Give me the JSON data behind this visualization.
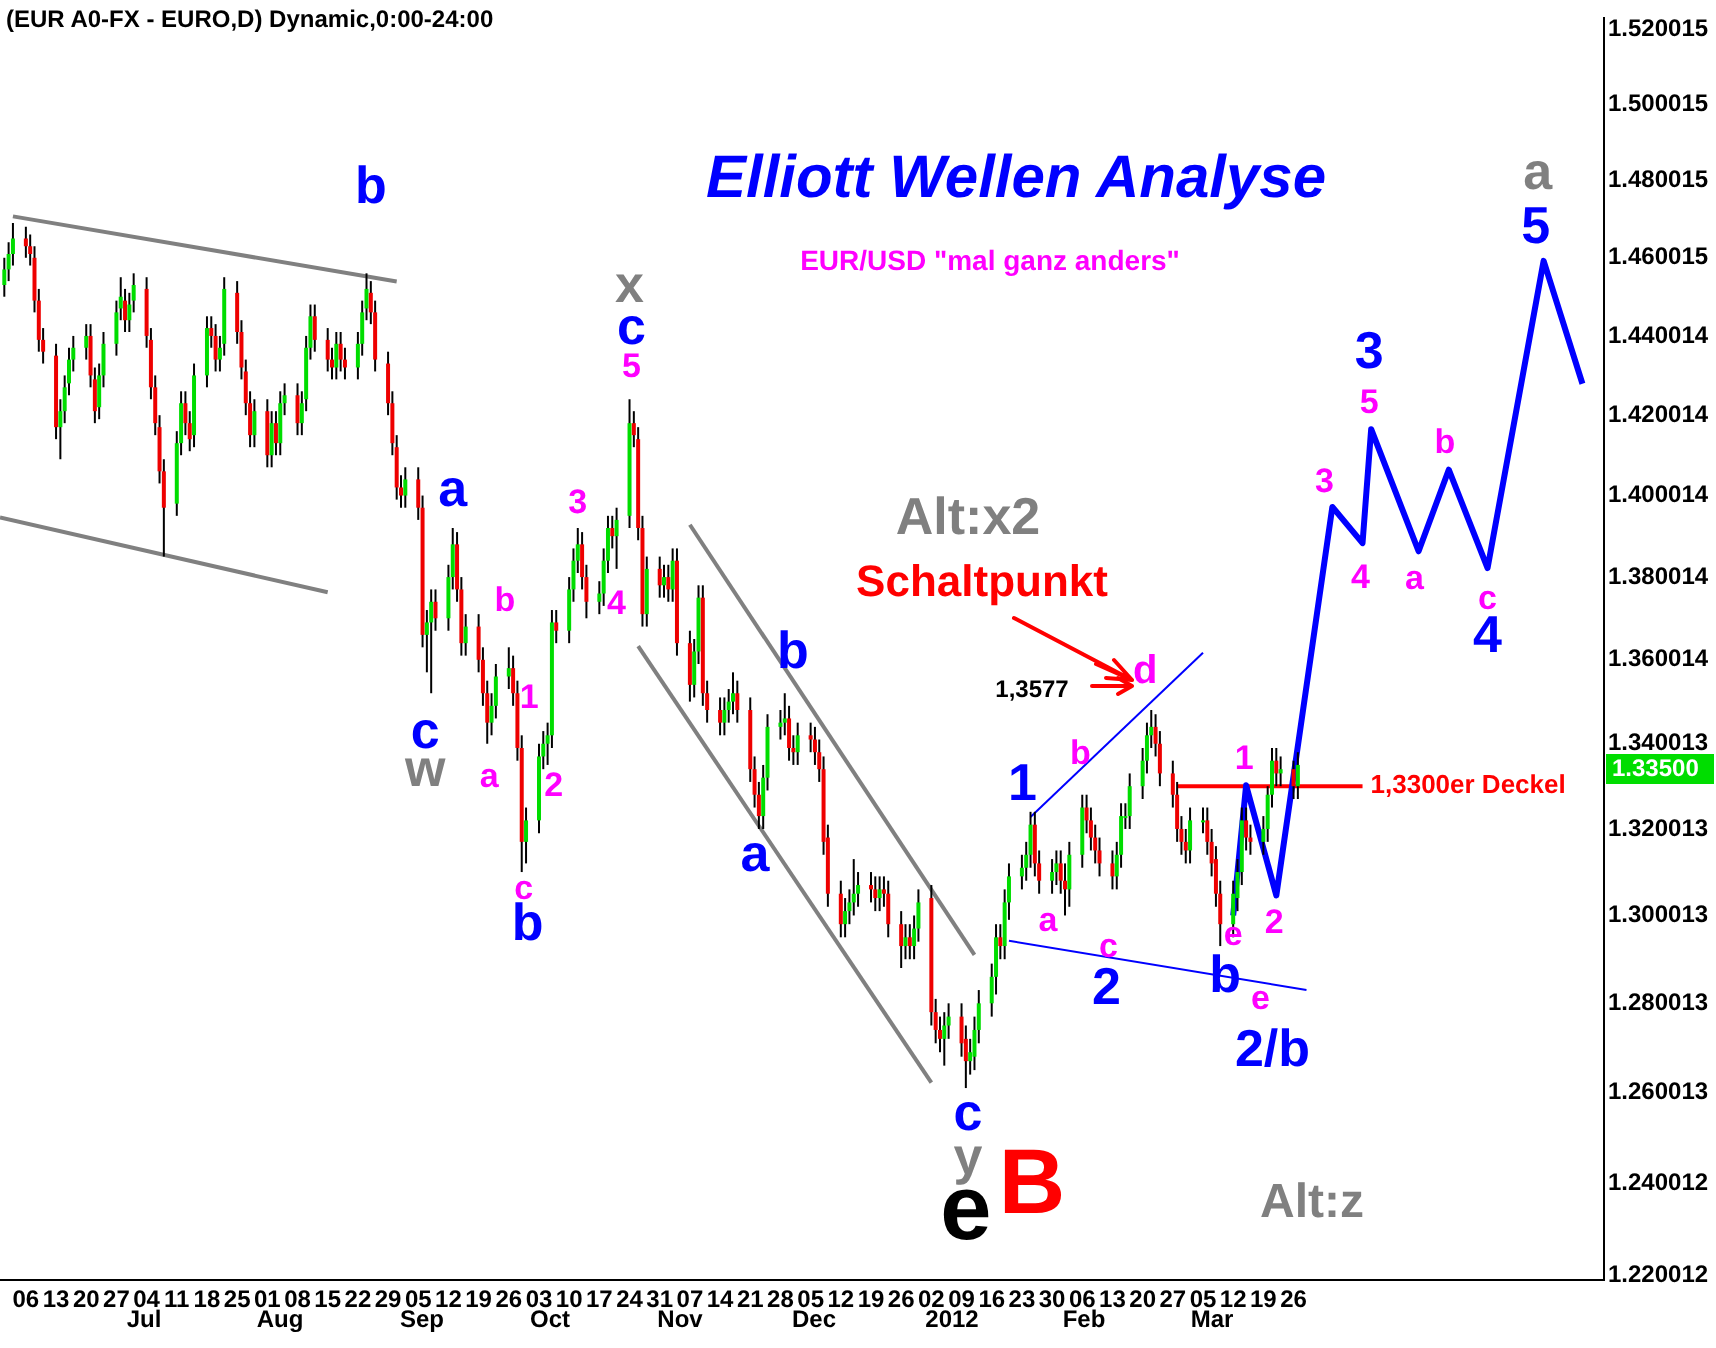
{
  "chart_data": {
    "type": "candlestick",
    "title": "Elliott Wellen Analyse",
    "subtitle": "EUR/USD \"mal ganz anders\"",
    "x": [
      "2011-06-01",
      "2011-06-02",
      "2011-06-03",
      "2011-06-06",
      "2011-06-07",
      "2011-06-08",
      "2011-06-09",
      "2011-06-10",
      "2011-06-13",
      "2011-06-14",
      "2011-06-15",
      "2011-06-16",
      "2011-06-17",
      "2011-06-20",
      "2011-06-21",
      "2011-06-22",
      "2011-06-23",
      "2011-06-24",
      "2011-06-27",
      "2011-06-28",
      "2011-06-29",
      "2011-06-30",
      "2011-07-01",
      "2011-07-04",
      "2011-07-05",
      "2011-07-06",
      "2011-07-07",
      "2011-07-08",
      "2011-07-11",
      "2011-07-12",
      "2011-07-13",
      "2011-07-14",
      "2011-07-15",
      "2011-07-18",
      "2011-07-19",
      "2011-07-20",
      "2011-07-21",
      "2011-07-22",
      "2011-07-25",
      "2011-07-26",
      "2011-07-27",
      "2011-07-28",
      "2011-07-29",
      "2011-08-01",
      "2011-08-02",
      "2011-08-03",
      "2011-08-04",
      "2011-08-05",
      "2011-08-08",
      "2011-08-09",
      "2011-08-10",
      "2011-08-11",
      "2011-08-12",
      "2011-08-15",
      "2011-08-16",
      "2011-08-17",
      "2011-08-18",
      "2011-08-19",
      "2011-08-22",
      "2011-08-23",
      "2011-08-24",
      "2011-08-25",
      "2011-08-26",
      "2011-08-29",
      "2011-08-30",
      "2011-08-31",
      "2011-09-01",
      "2011-09-02",
      "2011-09-05",
      "2011-09-06",
      "2011-09-07",
      "2011-09-08",
      "2011-09-09",
      "2011-09-12",
      "2011-09-13",
      "2011-09-14",
      "2011-09-15",
      "2011-09-16",
      "2011-09-19",
      "2011-09-20",
      "2011-09-21",
      "2011-09-22",
      "2011-09-23",
      "2011-09-26",
      "2011-09-27",
      "2011-09-28",
      "2011-09-29",
      "2011-09-30",
      "2011-10-03",
      "2011-10-04",
      "2011-10-05",
      "2011-10-06",
      "2011-10-07",
      "2011-10-10",
      "2011-10-11",
      "2011-10-12",
      "2011-10-13",
      "2011-10-14",
      "2011-10-17",
      "2011-10-18",
      "2011-10-19",
      "2011-10-20",
      "2011-10-21",
      "2011-10-24",
      "2011-10-25",
      "2011-10-26",
      "2011-10-27",
      "2011-10-28",
      "2011-10-31",
      "2011-11-01",
      "2011-11-02",
      "2011-11-03",
      "2011-11-04",
      "2011-11-07",
      "2011-11-08",
      "2011-11-09",
      "2011-11-10",
      "2011-11-11",
      "2011-11-14",
      "2011-11-15",
      "2011-11-16",
      "2011-11-17",
      "2011-11-18",
      "2011-11-21",
      "2011-11-22",
      "2011-11-23",
      "2011-11-24",
      "2011-11-25",
      "2011-11-28",
      "2011-11-29",
      "2011-11-30",
      "2011-12-01",
      "2011-12-02",
      "2011-12-05",
      "2011-12-06",
      "2011-12-07",
      "2011-12-08",
      "2011-12-09",
      "2011-12-12",
      "2011-12-13",
      "2011-12-14",
      "2011-12-15",
      "2011-12-16",
      "2011-12-19",
      "2011-12-20",
      "2011-12-21",
      "2011-12-22",
      "2011-12-23",
      "2011-12-26",
      "2011-12-27",
      "2011-12-28",
      "2011-12-29",
      "2011-12-30",
      "2012-01-02",
      "2012-01-03",
      "2012-01-04",
      "2012-01-05",
      "2012-01-06",
      "2012-01-09",
      "2012-01-10",
      "2012-01-11",
      "2012-01-12",
      "2012-01-13",
      "2012-01-16",
      "2012-01-17",
      "2012-01-18",
      "2012-01-19",
      "2012-01-20",
      "2012-01-23",
      "2012-01-24",
      "2012-01-25",
      "2012-01-26",
      "2012-01-27",
      "2012-01-30",
      "2012-01-31",
      "2012-02-01",
      "2012-02-02",
      "2012-02-03",
      "2012-02-06",
      "2012-02-07",
      "2012-02-08",
      "2012-02-09",
      "2012-02-10",
      "2012-02-13",
      "2012-02-14",
      "2012-02-15",
      "2012-02-16",
      "2012-02-17",
      "2012-02-20",
      "2012-02-21",
      "2012-02-22",
      "2012-02-23",
      "2012-02-24",
      "2012-02-27",
      "2012-02-28",
      "2012-02-29",
      "2012-03-01",
      "2012-03-02",
      "2012-03-05",
      "2012-03-06",
      "2012-03-07",
      "2012-03-08",
      "2012-03-09",
      "2012-03-12",
      "2012-03-13",
      "2012-03-14",
      "2012-03-15",
      "2012-03-16",
      "2012-03-19",
      "2012-03-20",
      "2012-03-21",
      "2012-03-22",
      "2012-03-23",
      "2012-03-26",
      "2012-03-27"
    ],
    "ohlc": [
      [
        1.453,
        1.46,
        1.45,
        1.457
      ],
      [
        1.457,
        1.464,
        1.454,
        1.461
      ],
      [
        1.461,
        1.469,
        1.458,
        1.465
      ],
      [
        1.465,
        1.468,
        1.46,
        1.463
      ],
      [
        1.463,
        1.466,
        1.458,
        1.461
      ],
      [
        1.46,
        1.463,
        1.446,
        1.449
      ],
      [
        1.449,
        1.452,
        1.436,
        1.439
      ],
      [
        1.439,
        1.442,
        1.433,
        1.436
      ],
      [
        1.435,
        1.438,
        1.414,
        1.417
      ],
      [
        1.417,
        1.424,
        1.409,
        1.421
      ],
      [
        1.421,
        1.43,
        1.418,
        1.427
      ],
      [
        1.428,
        1.437,
        1.425,
        1.434
      ],
      [
        1.434,
        1.44,
        1.431,
        1.437
      ],
      [
        1.437,
        1.443,
        1.434,
        1.44
      ],
      [
        1.44,
        1.443,
        1.427,
        1.43
      ],
      [
        1.429,
        1.432,
        1.418,
        1.421
      ],
      [
        1.422,
        1.433,
        1.419,
        1.43
      ],
      [
        1.43,
        1.441,
        1.427,
        1.438
      ],
      [
        1.438,
        1.449,
        1.435,
        1.446
      ],
      [
        1.447,
        1.455,
        1.444,
        1.45
      ],
      [
        1.449,
        1.452,
        1.441,
        1.444
      ],
      [
        1.444,
        1.451,
        1.441,
        1.448
      ],
      [
        1.449,
        1.456,
        1.446,
        1.453
      ],
      [
        1.452,
        1.455,
        1.437,
        1.44
      ],
      [
        1.439,
        1.442,
        1.424,
        1.427
      ],
      [
        1.427,
        1.43,
        1.415,
        1.418
      ],
      [
        1.417,
        1.42,
        1.403,
        1.406
      ],
      [
        1.406,
        1.409,
        1.385,
        1.397
      ],
      [
        1.398,
        1.416,
        1.395,
        1.413
      ],
      [
        1.413,
        1.426,
        1.41,
        1.423
      ],
      [
        1.423,
        1.426,
        1.415,
        1.418
      ],
      [
        1.418,
        1.421,
        1.411,
        1.414
      ],
      [
        1.415,
        1.433,
        1.412,
        1.43
      ],
      [
        1.43,
        1.445,
        1.427,
        1.442
      ],
      [
        1.442,
        1.445,
        1.437,
        1.44
      ],
      [
        1.44,
        1.443,
        1.431,
        1.434
      ],
      [
        1.434,
        1.44,
        1.431,
        1.437
      ],
      [
        1.438,
        1.455,
        1.435,
        1.452
      ],
      [
        1.451,
        1.454,
        1.438,
        1.441
      ],
      [
        1.441,
        1.444,
        1.429,
        1.432
      ],
      [
        1.431,
        1.434,
        1.42,
        1.423
      ],
      [
        1.423,
        1.426,
        1.412,
        1.415
      ],
      [
        1.415,
        1.424,
        1.412,
        1.421
      ],
      [
        1.421,
        1.424,
        1.407,
        1.41
      ],
      [
        1.41,
        1.421,
        1.407,
        1.418
      ],
      [
        1.418,
        1.421,
        1.41,
        1.413
      ],
      [
        1.413,
        1.426,
        1.41,
        1.423
      ],
      [
        1.423,
        1.428,
        1.42,
        1.425
      ],
      [
        1.425,
        1.428,
        1.415,
        1.418
      ],
      [
        1.418,
        1.426,
        1.415,
        1.423
      ],
      [
        1.424,
        1.44,
        1.421,
        1.437
      ],
      [
        1.437,
        1.448,
        1.434,
        1.445
      ],
      [
        1.445,
        1.448,
        1.436,
        1.439
      ],
      [
        1.439,
        1.442,
        1.431,
        1.434
      ],
      [
        1.434,
        1.437,
        1.429,
        1.432
      ],
      [
        1.432,
        1.441,
        1.429,
        1.438
      ],
      [
        1.438,
        1.441,
        1.431,
        1.434
      ],
      [
        1.434,
        1.437,
        1.429,
        1.432
      ],
      [
        1.432,
        1.441,
        1.429,
        1.438
      ],
      [
        1.438,
        1.449,
        1.435,
        1.446
      ],
      [
        1.447,
        1.456,
        1.444,
        1.452
      ],
      [
        1.451,
        1.454,
        1.443,
        1.446
      ],
      [
        1.446,
        1.449,
        1.431,
        1.434
      ],
      [
        1.433,
        1.436,
        1.42,
        1.423
      ],
      [
        1.423,
        1.426,
        1.41,
        1.413
      ],
      [
        1.412,
        1.415,
        1.399,
        1.402
      ],
      [
        1.402,
        1.405,
        1.397,
        1.4
      ],
      [
        1.4,
        1.407,
        1.397,
        1.404
      ],
      [
        1.404,
        1.407,
        1.394,
        1.397
      ],
      [
        1.397,
        1.4,
        1.363,
        1.366
      ],
      [
        1.366,
        1.372,
        1.357,
        1.369
      ],
      [
        1.369,
        1.377,
        1.352,
        1.374
      ],
      [
        1.374,
        1.377,
        1.367,
        1.37
      ],
      [
        1.37,
        1.383,
        1.367,
        1.38
      ],
      [
        1.38,
        1.392,
        1.377,
        1.388
      ],
      [
        1.388,
        1.391,
        1.374,
        1.377
      ],
      [
        1.377,
        1.38,
        1.361,
        1.364
      ],
      [
        1.364,
        1.371,
        1.361,
        1.368
      ],
      [
        1.368,
        1.371,
        1.357,
        1.36
      ],
      [
        1.36,
        1.363,
        1.349,
        1.352
      ],
      [
        1.352,
        1.355,
        1.34,
        1.345
      ],
      [
        1.345,
        1.352,
        1.342,
        1.349
      ],
      [
        1.349,
        1.359,
        1.346,
        1.356
      ],
      [
        1.356,
        1.363,
        1.353,
        1.358
      ],
      [
        1.358,
        1.361,
        1.349,
        1.352
      ],
      [
        1.352,
        1.355,
        1.336,
        1.339
      ],
      [
        1.339,
        1.342,
        1.31,
        1.317
      ],
      [
        1.317,
        1.325,
        1.312,
        1.322
      ],
      [
        1.322,
        1.34,
        1.319,
        1.337
      ],
      [
        1.337,
        1.343,
        1.334,
        1.34
      ],
      [
        1.34,
        1.345,
        1.335,
        1.342
      ],
      [
        1.342,
        1.372,
        1.339,
        1.369
      ],
      [
        1.369,
        1.372,
        1.364,
        1.367
      ],
      [
        1.367,
        1.38,
        1.364,
        1.377
      ],
      [
        1.377,
        1.387,
        1.374,
        1.384
      ],
      [
        1.384,
        1.392,
        1.381,
        1.388
      ],
      [
        1.388,
        1.391,
        1.377,
        1.38
      ],
      [
        1.38,
        1.383,
        1.37,
        1.374
      ],
      [
        1.374,
        1.379,
        1.371,
        1.376
      ],
      [
        1.376,
        1.387,
        1.373,
        1.384
      ],
      [
        1.384,
        1.395,
        1.381,
        1.392
      ],
      [
        1.392,
        1.395,
        1.387,
        1.39
      ],
      [
        1.39,
        1.397,
        1.382,
        1.394
      ],
      [
        1.395,
        1.424,
        1.392,
        1.418
      ],
      [
        1.418,
        1.421,
        1.412,
        1.415
      ],
      [
        1.414,
        1.417,
        1.389,
        1.392
      ],
      [
        1.392,
        1.395,
        1.368,
        1.371
      ],
      [
        1.371,
        1.385,
        1.368,
        1.382
      ],
      [
        1.382,
        1.385,
        1.375,
        1.378
      ],
      [
        1.378,
        1.383,
        1.375,
        1.38
      ],
      [
        1.38,
        1.383,
        1.374,
        1.377
      ],
      [
        1.377,
        1.387,
        1.374,
        1.384
      ],
      [
        1.384,
        1.387,
        1.361,
        1.364
      ],
      [
        1.364,
        1.367,
        1.35,
        1.354
      ],
      [
        1.354,
        1.365,
        1.351,
        1.362
      ],
      [
        1.362,
        1.378,
        1.359,
        1.375
      ],
      [
        1.375,
        1.378,
        1.349,
        1.352
      ],
      [
        1.352,
        1.355,
        1.345,
        1.348
      ],
      [
        1.348,
        1.351,
        1.342,
        1.345
      ],
      [
        1.345,
        1.351,
        1.342,
        1.348
      ],
      [
        1.348,
        1.353,
        1.345,
        1.35
      ],
      [
        1.35,
        1.357,
        1.347,
        1.352
      ],
      [
        1.352,
        1.355,
        1.345,
        1.348
      ],
      [
        1.348,
        1.351,
        1.331,
        1.334
      ],
      [
        1.334,
        1.337,
        1.325,
        1.328
      ],
      [
        1.328,
        1.331,
        1.32,
        1.323
      ],
      [
        1.323,
        1.335,
        1.32,
        1.332
      ],
      [
        1.332,
        1.347,
        1.329,
        1.344
      ],
      [
        1.344,
        1.348,
        1.341,
        1.345
      ],
      [
        1.345,
        1.352,
        1.342,
        1.346
      ],
      [
        1.346,
        1.349,
        1.336,
        1.339
      ],
      [
        1.339,
        1.342,
        1.335,
        1.338
      ],
      [
        1.338,
        1.345,
        1.335,
        1.342
      ],
      [
        1.342,
        1.345,
        1.338,
        1.341
      ],
      [
        1.341,
        1.344,
        1.335,
        1.338
      ],
      [
        1.338,
        1.341,
        1.331,
        1.334
      ],
      [
        1.334,
        1.337,
        1.314,
        1.317
      ],
      [
        1.318,
        1.321,
        1.302,
        1.305
      ],
      [
        1.305,
        1.308,
        1.295,
        1.298
      ],
      [
        1.298,
        1.304,
        1.295,
        1.301
      ],
      [
        1.301,
        1.306,
        1.298,
        1.303
      ],
      [
        1.303,
        1.313,
        1.3,
        1.305
      ],
      [
        1.305,
        1.31,
        1.302,
        1.307
      ],
      [
        1.307,
        1.31,
        1.303,
        1.306
      ],
      [
        1.306,
        1.309,
        1.301,
        1.304
      ],
      [
        1.304,
        1.309,
        1.301,
        1.306
      ],
      [
        1.306,
        1.309,
        1.302,
        1.305
      ],
      [
        1.305,
        1.308,
        1.295,
        1.298
      ],
      [
        1.298,
        1.301,
        1.288,
        1.293
      ],
      [
        1.293,
        1.298,
        1.29,
        1.295
      ],
      [
        1.295,
        1.298,
        1.29,
        1.293
      ],
      [
        1.293,
        1.3,
        1.29,
        1.297
      ],
      [
        1.297,
        1.306,
        1.294,
        1.303
      ],
      [
        1.304,
        1.307,
        1.275,
        1.278
      ],
      [
        1.278,
        1.281,
        1.271,
        1.274
      ],
      [
        1.274,
        1.277,
        1.269,
        1.272
      ],
      [
        1.272,
        1.278,
        1.266,
        1.275
      ],
      [
        1.275,
        1.28,
        1.272,
        1.277
      ],
      [
        1.277,
        1.28,
        1.268,
        1.271
      ],
      [
        1.272,
        1.275,
        1.261,
        1.267
      ],
      [
        1.267,
        1.272,
        1.264,
        1.269
      ],
      [
        1.268,
        1.277,
        1.265,
        1.274
      ],
      [
        1.274,
        1.283,
        1.271,
        1.28
      ],
      [
        1.28,
        1.289,
        1.277,
        1.286
      ],
      [
        1.286,
        1.298,
        1.282,
        1.295
      ],
      [
        1.295,
        1.298,
        1.29,
        1.293
      ],
      [
        1.293,
        1.306,
        1.29,
        1.303
      ],
      [
        1.303,
        1.312,
        1.299,
        1.309
      ],
      [
        1.309,
        1.314,
        1.306,
        1.311
      ],
      [
        1.311,
        1.317,
        1.308,
        1.314
      ],
      [
        1.314,
        1.324,
        1.311,
        1.321
      ],
      [
        1.321,
        1.324,
        1.309,
        1.312
      ],
      [
        1.312,
        1.315,
        1.305,
        1.308
      ],
      [
        1.308,
        1.313,
        1.305,
        1.31
      ],
      [
        1.31,
        1.315,
        1.307,
        1.312
      ],
      [
        1.312,
        1.315,
        1.305,
        1.308
      ],
      [
        1.308,
        1.312,
        1.3,
        1.306
      ],
      [
        1.306,
        1.317,
        1.302,
        1.314
      ],
      [
        1.314,
        1.328,
        1.311,
        1.325
      ],
      [
        1.325,
        1.328,
        1.319,
        1.322
      ],
      [
        1.322,
        1.325,
        1.315,
        1.318
      ],
      [
        1.318,
        1.321,
        1.312,
        1.315
      ],
      [
        1.315,
        1.318,
        1.309,
        1.312
      ],
      [
        1.312,
        1.315,
        1.306,
        1.309
      ],
      [
        1.309,
        1.317,
        1.306,
        1.314
      ],
      [
        1.314,
        1.326,
        1.311,
        1.323
      ],
      [
        1.323,
        1.326,
        1.32,
        1.323
      ],
      [
        1.323,
        1.333,
        1.32,
        1.33
      ],
      [
        1.33,
        1.339,
        1.327,
        1.336
      ],
      [
        1.336,
        1.345,
        1.333,
        1.342
      ],
      [
        1.342,
        1.348,
        1.339,
        1.344
      ],
      [
        1.344,
        1.347,
        1.337,
        1.34
      ],
      [
        1.34,
        1.343,
        1.33,
        1.333
      ],
      [
        1.333,
        1.336,
        1.325,
        1.328
      ],
      [
        1.328,
        1.331,
        1.317,
        1.32
      ],
      [
        1.32,
        1.323,
        1.314,
        1.317
      ],
      [
        1.317,
        1.32,
        1.312,
        1.315
      ],
      [
        1.315,
        1.325,
        1.312,
        1.322
      ],
      [
        1.322,
        1.325,
        1.319,
        1.322
      ],
      [
        1.322,
        1.325,
        1.314,
        1.317
      ],
      [
        1.317,
        1.32,
        1.309,
        1.312
      ],
      [
        1.313,
        1.316,
        1.302,
        1.305
      ],
      [
        1.305,
        1.308,
        1.293,
        1.298
      ],
      [
        1.298,
        1.308,
        1.295,
        1.305
      ],
      [
        1.304,
        1.313,
        1.301,
        1.31
      ],
      [
        1.31,
        1.325,
        1.307,
        1.322
      ],
      [
        1.322,
        1.325,
        1.315,
        1.318
      ],
      [
        1.318,
        1.321,
        1.314,
        1.317
      ],
      [
        1.317,
        1.323,
        1.314,
        1.32
      ],
      [
        1.32,
        1.33,
        1.317,
        1.328
      ],
      [
        1.328,
        1.339,
        1.325,
        1.336
      ],
      [
        1.336,
        1.339,
        1.33,
        1.333
      ],
      [
        1.333,
        1.337,
        1.33,
        1.334
      ],
      [
        1.334,
        1.336,
        1.327,
        1.33
      ],
      [
        1.33,
        1.338,
        1.327,
        1.335
      ]
    ],
    "colors": [
      "#00dd00",
      "#00dd00",
      "#00dd00",
      "#ee0000",
      "#ee0000",
      "#ee0000",
      "#ee0000",
      "#ee0000",
      "#ee0000",
      "#00dd00",
      "#00dd00",
      "#00dd00",
      "#00dd00",
      "#00dd00",
      "#ee0000",
      "#ee0000",
      "#00dd00",
      "#00dd00",
      "#00dd00",
      "#00dd00",
      "#ee0000",
      "#00dd00",
      "#00dd00",
      "#ee0000",
      "#ee0000",
      "#ee0000",
      "#ee0000",
      "#ee0000",
      "#00dd00",
      "#00dd00",
      "#ee0000",
      "#ee0000",
      "#00dd00",
      "#00dd00",
      "#ee0000",
      "#ee0000",
      "#00dd00",
      "#00dd00",
      "#ee0000",
      "#ee0000",
      "#ee0000",
      "#ee0000",
      "#00dd00",
      "#ee0000",
      "#00dd00",
      "#ee0000",
      "#00dd00",
      "#00dd00",
      "#ee0000",
      "#00dd00",
      "#00dd00",
      "#00dd00",
      "#ee0000",
      "#ee0000",
      "#ee0000",
      "#00dd00",
      "#ee0000",
      "#ee0000",
      "#00dd00",
      "#00dd00",
      "#00dd00",
      "#ee0000",
      "#ee0000",
      "#ee0000",
      "#ee0000",
      "#ee0000",
      "#ee0000",
      "#00dd00",
      "#ee0000",
      "#ee0000",
      "#00dd00",
      "#00dd00",
      "#ee0000",
      "#00dd00",
      "#00dd00",
      "#ee0000",
      "#ee0000",
      "#00dd00",
      "#ee0000",
      "#ee0000",
      "#ee0000",
      "#00dd00",
      "#00dd00",
      "#00dd00",
      "#ee0000",
      "#ee0000",
      "#ee0000",
      "#00dd00",
      "#00dd00",
      "#00dd00",
      "#00dd00",
      "#00dd00",
      "#ee0000",
      "#00dd00",
      "#00dd00",
      "#00dd00",
      "#ee0000",
      "#ee0000",
      "#00dd00",
      "#00dd00",
      "#00dd00",
      "#ee0000",
      "#00dd00",
      "#00dd00",
      "#ee0000",
      "#ee0000",
      "#ee0000",
      "#00dd00",
      "#ee0000",
      "#00dd00",
      "#ee0000",
      "#00dd00",
      "#ee0000",
      "#ee0000",
      "#00dd00",
      "#00dd00",
      "#ee0000",
      "#ee0000",
      "#ee0000",
      "#00dd00",
      "#00dd00",
      "#00dd00",
      "#ee0000",
      "#ee0000",
      "#ee0000",
      "#ee0000",
      "#00dd00",
      "#00dd00",
      "#00dd00",
      "#00dd00",
      "#ee0000",
      "#ee0000",
      "#00dd00",
      "#ee0000",
      "#ee0000",
      "#ee0000",
      "#ee0000",
      "#ee0000",
      "#ee0000",
      "#00dd00",
      "#00dd00",
      "#00dd00",
      "#00dd00",
      "#ee0000",
      "#ee0000",
      "#00dd00",
      "#ee0000",
      "#ee0000",
      "#ee0000",
      "#00dd00",
      "#ee0000",
      "#00dd00",
      "#00dd00",
      "#ee0000",
      "#ee0000",
      "#ee0000",
      "#00dd00",
      "#00dd00",
      "#ee0000",
      "#ee0000",
      "#00dd00",
      "#00dd00",
      "#00dd00",
      "#00dd00",
      "#00dd00",
      "#ee0000",
      "#00dd00",
      "#00dd00",
      "#00dd00",
      "#00dd00",
      "#00dd00",
      "#ee0000",
      "#ee0000",
      "#00dd00",
      "#00dd00",
      "#ee0000",
      "#ee0000",
      "#00dd00",
      "#00dd00",
      "#ee0000",
      "#ee0000",
      "#ee0000",
      "#ee0000",
      "#ee0000",
      "#00dd00",
      "#00dd00",
      "#00dd00",
      "#00dd00",
      "#00dd00",
      "#00dd00",
      "#00dd00",
      "#ee0000",
      "#ee0000",
      "#ee0000",
      "#ee0000",
      "#ee0000",
      "#ee0000",
      "#00dd00",
      "#00dd00",
      "#ee0000",
      "#ee0000",
      "#ee0000",
      "#ee0000",
      "#00dd00",
      "#00dd00",
      "#00dd00",
      "#ee0000",
      "#ee0000",
      "#00dd00",
      "#00dd00",
      "#00dd00",
      "#ee0000",
      "#00dd00",
      "#ee0000",
      "#00dd00"
    ],
    "series": [
      {
        "type": "line",
        "color": "#808080",
        "x": [
          "2011-06-03",
          "2011-08-31"
        ],
        "values": [
          1.4707,
          1.4539
        ]
      },
      {
        "type": "line",
        "color": "#808080",
        "x": [
          "2011-05-31",
          "2011-08-15"
        ],
        "values": [
          1.3946,
          1.3763
        ]
      },
      {
        "type": "line",
        "color": "#808080",
        "x": [
          "2011-11-07",
          "2012-01-12"
        ],
        "values": [
          1.3928,
          1.291
        ]
      },
      {
        "type": "line",
        "color": "#808080",
        "x": [
          "2011-10-26",
          "2012-01-02"
        ],
        "values": [
          1.3633,
          1.2622
        ]
      },
      {
        "type": "line",
        "color": "#0000ff",
        "x": [
          "2012-01-25",
          "2012-03-05"
        ],
        "values": [
          1.3228,
          1.3617
        ]
      },
      {
        "type": "line",
        "color": "#0000ff",
        "x": [
          "2012-01-20",
          "2012-03-29"
        ],
        "values": [
          1.2942,
          1.283
        ]
      },
      {
        "type": "line",
        "color": "#0000ff",
        "x": [
          "2012-03-12",
          "2012-03-15",
          "2012-03-22",
          "2012-04-04",
          "2012-04-11",
          "2012-04-13",
          "2012-04-24",
          "2012-05-01",
          "2012-05-10",
          "2012-05-23",
          "2012-06-01"
        ],
        "values": [
          1.3,
          1.3302,
          1.3046,
          1.3972,
          1.3883,
          1.4165,
          1.3863,
          1.4064,
          1.3822,
          1.4592,
          1.4279
        ]
      },
      {
        "type": "line",
        "name": "1,3300er Deckel",
        "color": "#ff0000",
        "x": [
          "2012-02-28",
          "2012-04-11"
        ],
        "values": [
          1.33,
          1.33
        ]
      }
    ],
    "xlim": [
      "2011-05-31",
      "2012-06-06"
    ],
    "xticks": [
      {
        "value": "2011-06-06",
        "label": "06"
      },
      {
        "value": "2011-06-13",
        "label": "13"
      },
      {
        "value": "2011-06-20",
        "label": "20"
      },
      {
        "value": "2011-06-27",
        "label": "27"
      },
      {
        "value": "2011-07-04",
        "label": "04"
      },
      {
        "value": "2011-07-11",
        "label": "11"
      },
      {
        "value": "2011-07-18",
        "label": "18"
      },
      {
        "value": "2011-07-25",
        "label": "25"
      },
      {
        "value": "2011-08-01",
        "label": "01"
      },
      {
        "value": "2011-08-08",
        "label": "08"
      },
      {
        "value": "2011-08-15",
        "label": "15"
      },
      {
        "value": "2011-08-22",
        "label": "22"
      },
      {
        "value": "2011-08-29",
        "label": "29"
      },
      {
        "value": "2011-09-05",
        "label": "05"
      },
      {
        "value": "2011-09-12",
        "label": "12"
      },
      {
        "value": "2011-09-19",
        "label": "19"
      },
      {
        "value": "2011-09-26",
        "label": "26"
      },
      {
        "value": "2011-10-03",
        "label": "03"
      },
      {
        "value": "2011-10-10",
        "label": "10"
      },
      {
        "value": "2011-10-17",
        "label": "17"
      },
      {
        "value": "2011-10-24",
        "label": "24"
      },
      {
        "value": "2011-10-31",
        "label": "31"
      },
      {
        "value": "2011-11-07",
        "label": "07"
      },
      {
        "value": "2011-11-14",
        "label": "14"
      },
      {
        "value": "2011-11-21",
        "label": "21"
      },
      {
        "value": "2011-11-28",
        "label": "28"
      },
      {
        "value": "2011-12-05",
        "label": "05"
      },
      {
        "value": "2011-12-12",
        "label": "12"
      },
      {
        "value": "2011-12-19",
        "label": "19"
      },
      {
        "value": "2011-12-26",
        "label": "26"
      },
      {
        "value": "2012-01-02",
        "label": "02"
      },
      {
        "value": "2012-01-09",
        "label": "09"
      },
      {
        "value": "2012-01-16",
        "label": "16"
      },
      {
        "value": "2012-01-23",
        "label": "23"
      },
      {
        "value": "2012-01-30",
        "label": "30"
      },
      {
        "value": "2012-02-06",
        "label": "06"
      },
      {
        "value": "2012-02-13",
        "label": "13"
      },
      {
        "value": "2012-02-20",
        "label": "20"
      },
      {
        "value": "2012-02-27",
        "label": "27"
      },
      {
        "value": "2012-03-05",
        "label": "05"
      },
      {
        "value": "2012-03-12",
        "label": "12"
      },
      {
        "value": "2012-03-19",
        "label": "19"
      },
      {
        "value": "2012-03-26",
        "label": "26"
      }
    ],
    "ylim": [
      1.219,
      1.523
    ],
    "yticks": [
      1.220012,
      1.240012,
      1.260013,
      1.280013,
      1.300013,
      1.320013,
      1.340013,
      1.360014,
      1.380014,
      1.400014,
      1.420014,
      1.440014,
      1.460015,
      1.480015,
      1.500015,
      1.520015
    ],
    "log": true,
    "annotations": [
      "(EUR A0-FX - EURO,D) Dynamic,0:00-24:00",
      "Jul",
      "Aug",
      "Sep",
      "Oct",
      "Nov",
      "Dec",
      "2012",
      "Feb",
      "Mar",
      {
        "text": "b",
        "x": "2011-08-25",
        "y": 1.454
      },
      {
        "text": "a",
        "x": "2011-09-13",
        "y": 1.392
      },
      {
        "text": "c",
        "x": "2011-09-08",
        "y": 1.352
      },
      {
        "text": "w",
        "x": "2011-09-08",
        "y": 1.352
      },
      {
        "text": "b",
        "x": "2011-09-26",
        "y": 1.363
      },
      {
        "text": "a",
        "x": "2011-09-21",
        "y": 1.34
      },
      {
        "text": "1",
        "x": "2011-10-04",
        "y": 1.343
      },
      {
        "text": "2",
        "x": "2011-10-05",
        "y": 1.335
      },
      {
        "text": "c",
        "x": "2011-09-29",
        "y": 1.31
      },
      {
        "text": "b",
        "x": "2011-09-29",
        "y": 1.31
      },
      {
        "text": "x",
        "x": "2011-10-24",
        "y": 1.424
      },
      {
        "text": "c",
        "x": "2011-10-24",
        "y": 1.424
      },
      {
        "text": "5",
        "x": "2011-10-24",
        "y": 1.424
      },
      {
        "text": "3",
        "x": "2011-10-12",
        "y": 1.392
      },
      {
        "text": "4",
        "x": "2011-10-21",
        "y": 1.382
      },
      {
        "text": "b",
        "x": "2011-11-29",
        "y": 1.352
      },
      {
        "text": "a",
        "x": "2011-11-23",
        "y": 1.32
      },
      "Alt:x2",
      "Schaltpunkt",
      "1,3577",
      {
        "text": "d",
        "x": "2012-02-22",
        "y": 1.348
      },
      {
        "text": "b",
        "x": "2012-02-06",
        "y": 1.328
      },
      {
        "text": "1",
        "x": "2012-01-25",
        "y": 1.324
      },
      {
        "text": "a",
        "x": "2012-01-30",
        "y": 1.305
      },
      {
        "text": "c",
        "x": "2012-02-13",
        "y": 1.306
      },
      {
        "text": "2",
        "x": "2012-02-13",
        "y": 1.306
      },
      {
        "text": "c",
        "x": "2012-01-10",
        "y": 1.261
      },
      {
        "text": "y",
        "x": "2012-01-10",
        "y": 1.261
      },
      {
        "text": "e",
        "x": "2012-01-10",
        "y": 1.261
      },
      {
        "text": "B",
        "x": "2012-01-10",
        "y": 1.261
      },
      {
        "text": "1",
        "x": "2012-03-15",
        "y": 1.3302
      },
      {
        "text": "2",
        "x": "2012-03-22",
        "y": 1.3046
      },
      {
        "text": "e",
        "x": "2012-03-12",
        "y": 1.3
      },
      {
        "text": "b",
        "x": "2012-03-12",
        "y": 1.3
      },
      {
        "text": "e",
        "x": "2012-03-29",
        "y": 1.283
      },
      {
        "text": "2/b",
        "x": "2012-03-29",
        "y": 1.283
      },
      {
        "text": "3",
        "x": "2012-04-04",
        "y": 1.3972
      },
      {
        "text": "4",
        "x": "2012-04-11",
        "y": 1.3883
      },
      {
        "text": "5",
        "x": "2012-04-13",
        "y": 1.4165
      },
      {
        "text": "3",
        "x": "2012-04-13",
        "y": 1.4165
      },
      {
        "text": "a",
        "x": "2012-04-24",
        "y": 1.3863
      },
      {
        "text": "b",
        "x": "2012-05-01",
        "y": 1.4064
      },
      {
        "text": "c",
        "x": "2012-05-10",
        "y": 1.3822
      },
      {
        "text": "4",
        "x": "2012-05-10",
        "y": 1.3822
      },
      {
        "text": "5",
        "x": "2012-05-23",
        "y": 1.4592
      },
      {
        "text": "a",
        "x": "2012-05-23",
        "y": 1.4592
      },
      "Alt:z",
      "1.33500"
    ]
  }
}
